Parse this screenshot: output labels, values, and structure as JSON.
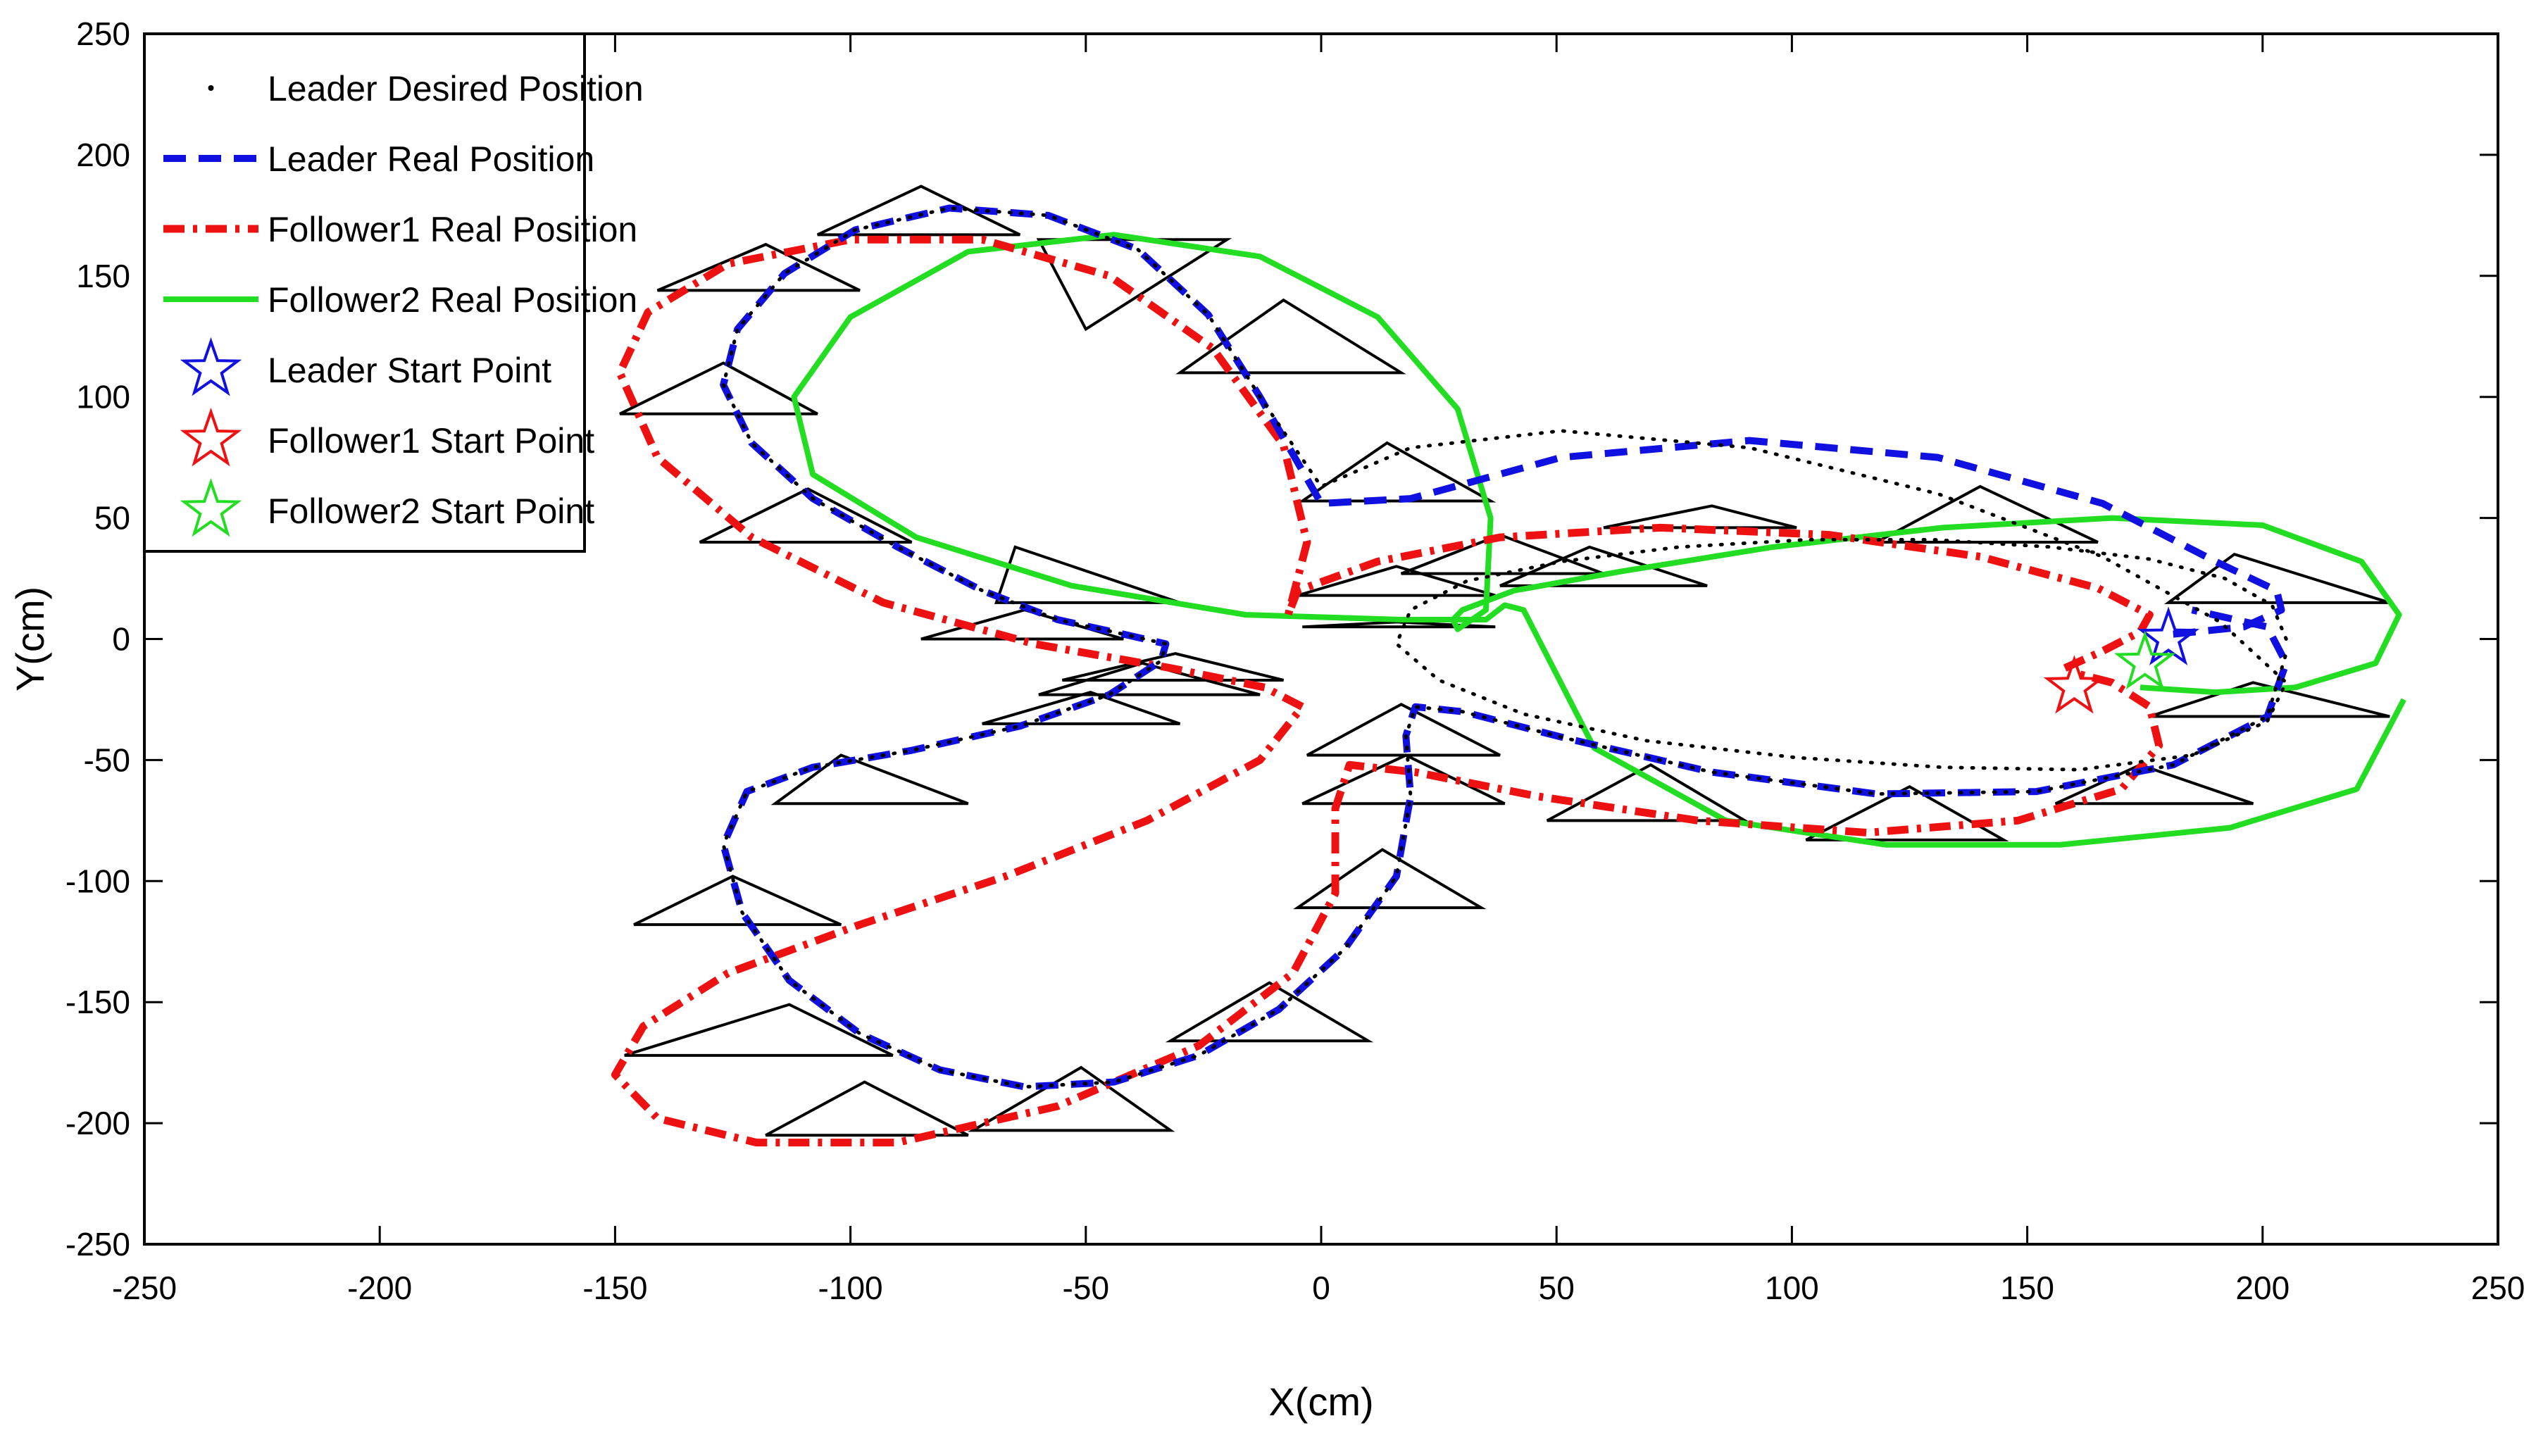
{
  "chart_data": {
    "type": "line",
    "title": "",
    "xlabel": "X(cm)",
    "ylabel": "Y(cm)",
    "xlim": [
      -250,
      250
    ],
    "ylim": [
      -250,
      250
    ],
    "xticks": [
      -250,
      -200,
      -150,
      -100,
      -50,
      0,
      50,
      100,
      150,
      200,
      250
    ],
    "yticks": [
      -250,
      -200,
      -150,
      -100,
      -50,
      0,
      50,
      100,
      150,
      200,
      250
    ],
    "xtick_labels": [
      "-250",
      "-200",
      "-150",
      "-100",
      "-50",
      "0",
      "50",
      "100",
      "150",
      "200",
      "250"
    ],
    "ytick_labels": [
      "-250",
      "-200",
      "-150",
      "-100",
      "-50",
      "0",
      "50",
      "100",
      "150",
      "200",
      "250"
    ],
    "grid": false,
    "legend_position": "top-left",
    "legend": [
      {
        "label": "Leader Desired Position",
        "color": "#000000",
        "style": "dotted"
      },
      {
        "label": "Leader Real Position",
        "color": "#1010e0",
        "style": "dashed"
      },
      {
        "label": "Follower1 Real Position",
        "color": "#ee1111",
        "style": "dash-dot"
      },
      {
        "label": "Follower2 Real Position",
        "color": "#22dd22",
        "style": "solid"
      },
      {
        "label": "Leader Start Point",
        "color": "#1010e0",
        "style": "star"
      },
      {
        "label": "Follower1 Start Point",
        "color": "#ee1111",
        "style": "star"
      },
      {
        "label": "Follower2 Start Point",
        "color": "#22dd22",
        "style": "star"
      }
    ],
    "series": [
      {
        "name": "Leader Desired Position",
        "color": "#000000",
        "x": [
          205,
          202,
          192,
          176,
          155,
          130,
          103,
          76,
          51,
          31,
          19,
          16,
          25,
          43,
          69,
          101,
          132,
          161,
          185,
          201,
          205,
          191,
          166,
          131,
          91,
          51,
          19,
          0,
          -13,
          -24,
          -39,
          -58,
          -79,
          -99,
          -114,
          -124,
          -127,
          -121,
          -108,
          -90,
          -72,
          -56,
          -42,
          -33,
          -34,
          -45,
          -64,
          -87,
          -108,
          -122,
          -127,
          -123,
          -113,
          -98,
          -81,
          -63,
          -44,
          -26,
          -9,
          5,
          16,
          19,
          18,
          20,
          30,
          52,
          83,
          118,
          152,
          181,
          201,
          205
        ],
        "y": [
          0,
          14,
          25,
          33,
          38,
          41,
          41,
          38,
          32,
          24,
          12,
          -2,
          -17,
          -31,
          -42,
          -49,
          -53,
          -54,
          -48,
          -34,
          -18,
          7,
          34,
          60,
          79,
          86,
          79,
          63,
          100,
          134,
          161,
          175,
          178,
          169,
          151,
          128,
          105,
          81,
          58,
          38,
          20,
          8,
          2,
          -2,
          -9,
          -23,
          -36,
          -46,
          -53,
          -63,
          -85,
          -113,
          -141,
          -163,
          -178,
          -185,
          -183,
          -172,
          -153,
          -128,
          -98,
          -65,
          -40,
          -28,
          -30,
          -41,
          -55,
          -64,
          -63,
          -52,
          -32,
          -6
        ]
      },
      {
        "name": "Leader Real Position",
        "color": "#1010e0",
        "x": [
          181,
          196,
          204,
          203,
          190,
          166,
          131,
          91,
          51,
          19,
          0,
          -13,
          -24,
          -39,
          -58,
          -79,
          -99,
          -114,
          -124,
          -127,
          -121,
          -108,
          -90,
          -72,
          -56,
          -42,
          -33,
          -34,
          -45,
          -64,
          -87,
          -108,
          -122,
          -127,
          -123,
          -113,
          -98,
          -81,
          -63,
          -44,
          -26,
          -9,
          5,
          16,
          19,
          18,
          20,
          30,
          52,
          83,
          118,
          152,
          181,
          201,
          205,
          201,
          185
        ],
        "y": [
          2,
          5,
          12,
          20,
          32,
          56,
          75,
          82,
          75,
          58,
          56,
          100,
          134,
          161,
          175,
          178,
          169,
          151,
          128,
          105,
          81,
          58,
          38,
          20,
          8,
          2,
          -2,
          -9,
          -23,
          -36,
          -46,
          -53,
          -63,
          -85,
          -113,
          -141,
          -163,
          -178,
          -185,
          -183,
          -172,
          -153,
          -128,
          -98,
          -65,
          -40,
          -28,
          -30,
          -41,
          -55,
          -64,
          -63,
          -52,
          -32,
          -10,
          5,
          12
        ]
      },
      {
        "name": "Follower1 Real Position",
        "color": "#ee1111",
        "x": [
          158,
          166,
          174,
          176,
          165,
          140,
          108,
          72,
          38,
          12,
          -5,
          -7,
          -3,
          -8,
          -23,
          -45,
          -72,
          -100,
          -126,
          -143,
          -149,
          -141,
          -121,
          -93,
          -61,
          -32,
          -12,
          -4,
          -13,
          -37,
          -67,
          -98,
          -126,
          -144,
          -150,
          -141,
          -120,
          -90,
          -56,
          -26,
          -6,
          3,
          3,
          6,
          20,
          46,
          80,
          116,
          148,
          170,
          178,
          176,
          168,
          160
        ],
        "y": [
          -12,
          -5,
          3,
          10,
          21,
          34,
          43,
          46,
          42,
          32,
          20,
          10,
          40,
          80,
          120,
          150,
          165,
          165,
          155,
          135,
          110,
          75,
          42,
          15,
          -2,
          -12,
          -20,
          -28,
          -50,
          -75,
          -98,
          -118,
          -138,
          -160,
          -180,
          -198,
          -208,
          -208,
          -193,
          -168,
          -138,
          -105,
          -70,
          -52,
          -55,
          -65,
          -75,
          -80,
          -75,
          -62,
          -44,
          -28,
          -18,
          -14
        ]
      },
      {
        "name": "Follower2 Real Position",
        "color": "#22dd22",
        "x": [
          174,
          190,
          207,
          224,
          229,
          221,
          200,
          168,
          132,
          96,
          64,
          41,
          30,
          28,
          29,
          35,
          36,
          29,
          12,
          -13,
          -44,
          -75,
          -100,
          -112,
          -108,
          -86,
          -53,
          -16,
          17,
          35,
          39,
          43,
          58,
          86,
          120,
          157,
          193,
          220,
          230
        ],
        "y": [
          -20,
          -22,
          -20,
          -10,
          10,
          32,
          47,
          50,
          46,
          38,
          28,
          20,
          12,
          8,
          4,
          12,
          50,
          95,
          133,
          158,
          167,
          160,
          133,
          100,
          68,
          42,
          22,
          10,
          8,
          8,
          14,
          12,
          -45,
          -75,
          -85,
          -85,
          -78,
          -62,
          -25
        ]
      }
    ],
    "formations": [
      {
        "top": [
          -85,
          187
        ],
        "left": [
          -107,
          167
        ],
        "right": [
          -64,
          167
        ]
      },
      {
        "top": [
          -118,
          163
        ],
        "left": [
          -141,
          144
        ],
        "right": [
          -98,
          144
        ]
      },
      {
        "top": [
          -127,
          114
        ],
        "left": [
          -149,
          93
        ],
        "right": [
          -107,
          93
        ]
      },
      {
        "top": [
          -109,
          62
        ],
        "left": [
          -132,
          40
        ],
        "right": [
          -87,
          40
        ]
      },
      {
        "top": [
          -50,
          128
        ],
        "left": [
          -60,
          165
        ],
        "right": [
          -20,
          165
        ]
      },
      {
        "top": [
          -63,
          12
        ],
        "left": [
          -85,
          0
        ],
        "right": [
          -42,
          0
        ]
      },
      {
        "top": [
          -8,
          140
        ],
        "left": [
          -30,
          110
        ],
        "right": [
          17,
          110
        ]
      },
      {
        "top": [
          14,
          81
        ],
        "left": [
          -4,
          57
        ],
        "right": [
          36,
          57
        ]
      },
      {
        "top": [
          16,
          30
        ],
        "left": [
          -5,
          18
        ],
        "right": [
          37,
          18
        ]
      },
      {
        "top": [
          16,
          7
        ],
        "left": [
          -4,
          5
        ],
        "right": [
          37,
          5
        ]
      },
      {
        "top": [
          -31,
          -6
        ],
        "left": [
          -55,
          -17
        ],
        "right": [
          -8,
          -17
        ]
      },
      {
        "top": [
          -38,
          -10
        ],
        "left": [
          -60,
          -23
        ],
        "right": [
          -13,
          -23
        ]
      },
      {
        "top": [
          -49,
          -22
        ],
        "left": [
          -72,
          -35
        ],
        "right": [
          -30,
          -35
        ]
      },
      {
        "top": [
          -65,
          38
        ],
        "left": [
          -69,
          15
        ],
        "right": [
          -30,
          15
        ]
      },
      {
        "top": [
          38,
          43
        ],
        "left": [
          17,
          27
        ],
        "right": [
          60,
          27
        ]
      },
      {
        "top": [
          57,
          38
        ],
        "left": [
          38,
          22
        ],
        "right": [
          82,
          22
        ]
      },
      {
        "top": [
          83,
          55
        ],
        "left": [
          60,
          46
        ],
        "right": [
          101,
          46
        ]
      },
      {
        "top": [
          140,
          63
        ],
        "left": [
          118,
          40
        ],
        "right": [
          165,
          40
        ]
      },
      {
        "top": [
          194,
          35
        ],
        "left": [
          180,
          15
        ],
        "right": [
          227,
          15
        ]
      },
      {
        "top": [
          198,
          -18
        ],
        "left": [
          176,
          -32
        ],
        "right": [
          227,
          -32
        ]
      },
      {
        "top": [
          174,
          -52
        ],
        "left": [
          156,
          -68
        ],
        "right": [
          198,
          -68
        ]
      },
      {
        "top": [
          125,
          -61
        ],
        "left": [
          103,
          -83
        ],
        "right": [
          145,
          -83
        ]
      },
      {
        "top": [
          70,
          -52
        ],
        "left": [
          48,
          -75
        ],
        "right": [
          90,
          -75
        ]
      },
      {
        "top": [
          17,
          -27
        ],
        "left": [
          -3,
          -48
        ],
        "right": [
          38,
          -48
        ]
      },
      {
        "top": [
          18,
          -48
        ],
        "left": [
          -4,
          -68
        ],
        "right": [
          39,
          -68
        ]
      },
      {
        "top": [
          13,
          -87
        ],
        "left": [
          -5,
          -111
        ],
        "right": [
          34,
          -111
        ]
      },
      {
        "top": [
          -102,
          -48
        ],
        "left": [
          -116,
          -68
        ],
        "right": [
          -75,
          -68
        ]
      },
      {
        "top": [
          -125,
          -98
        ],
        "left": [
          -146,
          -118
        ],
        "right": [
          -102,
          -118
        ]
      },
      {
        "top": [
          -113,
          -151
        ],
        "left": [
          -148,
          -172
        ],
        "right": [
          -91,
          -172
        ]
      },
      {
        "top": [
          -97,
          -183
        ],
        "left": [
          -118,
          -205
        ],
        "right": [
          -75,
          -205
        ]
      },
      {
        "top": [
          -51,
          -177
        ],
        "left": [
          -74,
          -203
        ],
        "right": [
          -32,
          -203
        ]
      },
      {
        "top": [
          -11,
          -142
        ],
        "left": [
          -32,
          -166
        ],
        "right": [
          10,
          -166
        ]
      }
    ],
    "start_points": [
      {
        "name": "Leader Start Point",
        "x": 180,
        "y": 0,
        "color": "#1010e0"
      },
      {
        "name": "Follower1 Start Point",
        "x": 160,
        "y": -20,
        "color": "#ee1111"
      },
      {
        "name": "Follower2 Start Point",
        "x": 175,
        "y": -10,
        "color": "#22dd22"
      }
    ]
  }
}
